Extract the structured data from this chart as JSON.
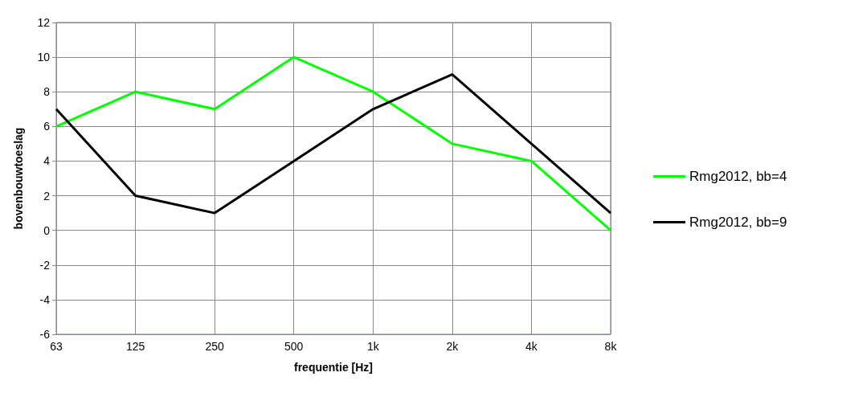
{
  "chart_data": {
    "type": "line",
    "xlabel": "frequentie [Hz]",
    "ylabel": "bovenbouwtoeslag",
    "categories": [
      "63",
      "125",
      "250",
      "500",
      "1k",
      "2k",
      "4k",
      "8k"
    ],
    "series": [
      {
        "name": "Rmg2012, bb=4",
        "color": "#00ff00",
        "values": [
          6,
          8,
          7,
          10,
          8,
          5,
          4,
          0
        ]
      },
      {
        "name": "Rmg2012, bb=9",
        "color": "#000000",
        "values": [
          7,
          2,
          1,
          4,
          7,
          9,
          5,
          1
        ]
      }
    ],
    "ylim": [
      -6,
      12
    ],
    "yticks": [
      -6,
      -4,
      -2,
      0,
      2,
      4,
      6,
      8,
      10,
      12
    ],
    "grid": true,
    "legend": "right",
    "marker": "none",
    "line_style": "solid"
  }
}
